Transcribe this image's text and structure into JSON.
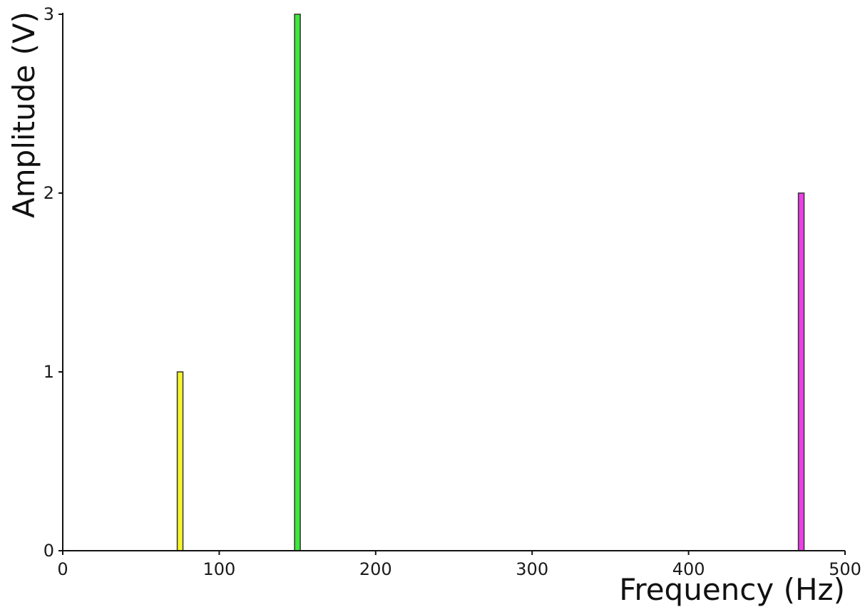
{
  "chart_data": {
    "type": "bar",
    "title": "",
    "xlabel": "Frequency (Hz)",
    "ylabel": "Amplitude (V)",
    "xlim": [
      0,
      500
    ],
    "ylim": [
      0,
      3
    ],
    "xticks": [
      "0",
      "100",
      "200",
      "300",
      "400",
      "500"
    ],
    "yticks": [
      "0",
      "1",
      "2",
      "3"
    ],
    "grid": false,
    "legend": "none",
    "bars": [
      {
        "x": 75,
        "value": 1,
        "color": "#f5f52a"
      },
      {
        "x": 150,
        "value": 3,
        "color": "#3ee83a"
      },
      {
        "x": 472,
        "value": 2,
        "color": "#ee3ee8"
      }
    ]
  }
}
